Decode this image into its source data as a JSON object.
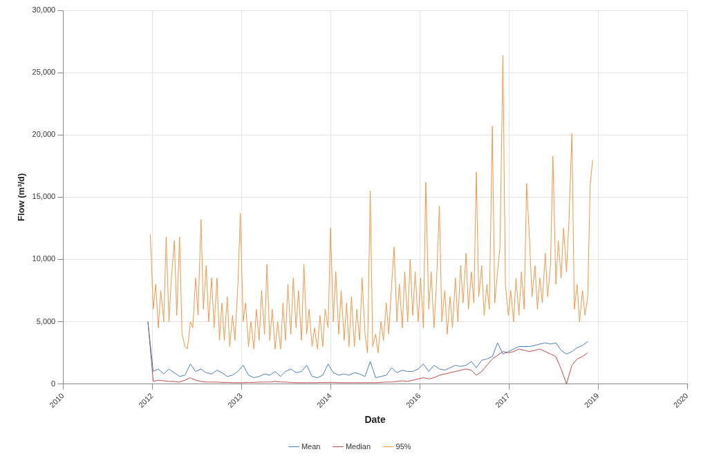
{
  "chart_data": {
    "type": "line",
    "xlabel": "Date",
    "ylabel": "Flow (m³/d)",
    "grid": true,
    "legend": "bottom",
    "xlim": [
      "2010-09-01",
      "2020-06-24"
    ],
    "xticks": [
      {
        "value": "2010-09-01",
        "label": "2010"
      },
      {
        "value": "2012-01-26",
        "label": "2012"
      },
      {
        "value": "2013-06-21",
        "label": "2013"
      },
      {
        "value": "2014-11-15",
        "label": "2014"
      },
      {
        "value": "2016-04-10",
        "label": "2016"
      },
      {
        "value": "2017-09-04",
        "label": "2017"
      },
      {
        "value": "2019-01-29",
        "label": "2019"
      },
      {
        "value": "2020-06-24",
        "label": "2020"
      }
    ],
    "ylim": [
      0,
      30000
    ],
    "yticks": [
      {
        "value": 0,
        "label": "0"
      },
      {
        "value": 5000,
        "label": "5,000"
      },
      {
        "value": 10000,
        "label": "10,000"
      },
      {
        "value": 15000,
        "label": "15,000"
      },
      {
        "value": 20000,
        "label": "20,000"
      },
      {
        "value": 25000,
        "label": "25,000"
      },
      {
        "value": 30000,
        "label": "30,000"
      }
    ],
    "series": [
      {
        "name": "Mean",
        "color": "#4a7ebb",
        "x": [
          "2012-01",
          "2012-02",
          "2012-03",
          "2012-04",
          "2012-05",
          "2012-06",
          "2012-07",
          "2012-08",
          "2012-09",
          "2012-10",
          "2012-11",
          "2012-12",
          "2013-01",
          "2013-02",
          "2013-03",
          "2013-04",
          "2013-05",
          "2013-06",
          "2013-07",
          "2013-08",
          "2013-09",
          "2013-10",
          "2013-11",
          "2013-12",
          "2014-01",
          "2014-02",
          "2014-03",
          "2014-04",
          "2014-05",
          "2014-06",
          "2014-07",
          "2014-08",
          "2014-09",
          "2014-10",
          "2014-11",
          "2014-12",
          "2015-01",
          "2015-02",
          "2015-03",
          "2015-04",
          "2015-05",
          "2015-06",
          "2015-07",
          "2015-08",
          "2015-09",
          "2015-10",
          "2015-11",
          "2015-12",
          "2016-01",
          "2016-02",
          "2016-03",
          "2016-04",
          "2016-05",
          "2016-06",
          "2016-07",
          "2016-08",
          "2016-09",
          "2016-10",
          "2016-11",
          "2016-12",
          "2017-01",
          "2017-02",
          "2017-03",
          "2017-04",
          "2017-05",
          "2017-06",
          "2017-07",
          "2017-08",
          "2017-09",
          "2017-10",
          "2017-11",
          "2017-12",
          "2018-01",
          "2018-02",
          "2018-03",
          "2018-04",
          "2018-05",
          "2018-06",
          "2018-07",
          "2018-08",
          "2018-09",
          "2018-10",
          "2018-11",
          "2018-12"
        ],
        "values": [
          5000,
          1000,
          1200,
          800,
          1200,
          900,
          600,
          700,
          1600,
          1000,
          1200,
          900,
          800,
          1100,
          900,
          600,
          700,
          1000,
          1500,
          700,
          500,
          600,
          800,
          700,
          1000,
          600,
          1000,
          1200,
          900,
          1000,
          1500,
          600,
          500,
          700,
          1600,
          900,
          700,
          800,
          700,
          900,
          800,
          600,
          1800,
          500,
          600,
          700,
          1300,
          900,
          1100,
          1000,
          1000,
          1200,
          1600,
          1000,
          1500,
          1200,
          1100,
          1300,
          1500,
          1400,
          1500,
          1800,
          1300,
          1900,
          2000,
          2200,
          3300,
          2400,
          2600,
          2800,
          3000,
          3000,
          3000,
          3100,
          3200,
          3300,
          3200,
          3300,
          2700,
          2400,
          2600,
          2900,
          3100,
          3400
        ]
      },
      {
        "name": "Median",
        "color": "#be4b48",
        "x": [
          "2012-01",
          "2012-02",
          "2012-03",
          "2012-04",
          "2012-05",
          "2012-06",
          "2012-07",
          "2012-08",
          "2012-09",
          "2012-10",
          "2012-11",
          "2012-12",
          "2013-01",
          "2013-02",
          "2013-03",
          "2013-04",
          "2013-05",
          "2013-06",
          "2013-07",
          "2013-08",
          "2013-09",
          "2013-10",
          "2013-11",
          "2013-12",
          "2014-01",
          "2014-02",
          "2014-03",
          "2014-04",
          "2014-05",
          "2014-06",
          "2014-07",
          "2014-08",
          "2014-09",
          "2014-10",
          "2014-11",
          "2014-12",
          "2015-01",
          "2015-02",
          "2015-03",
          "2015-04",
          "2015-05",
          "2015-06",
          "2015-07",
          "2015-08",
          "2015-09",
          "2015-10",
          "2015-11",
          "2015-12",
          "2016-01",
          "2016-02",
          "2016-03",
          "2016-04",
          "2016-05",
          "2016-06",
          "2016-07",
          "2016-08",
          "2016-09",
          "2016-10",
          "2016-11",
          "2016-12",
          "2017-01",
          "2017-02",
          "2017-03",
          "2017-04",
          "2017-05",
          "2017-06",
          "2017-07",
          "2017-08",
          "2017-09",
          "2017-10",
          "2017-11",
          "2017-12",
          "2018-01",
          "2018-02",
          "2018-03",
          "2018-04",
          "2018-05",
          "2018-06",
          "2018-07",
          "2018-08",
          "2018-09",
          "2018-10",
          "2018-11",
          "2018-12"
        ],
        "values": [
          5000,
          200,
          300,
          250,
          200,
          200,
          150,
          300,
          500,
          300,
          200,
          150,
          150,
          150,
          120,
          120,
          100,
          100,
          100,
          120,
          120,
          150,
          150,
          150,
          200,
          150,
          150,
          120,
          100,
          100,
          100,
          100,
          100,
          120,
          120,
          120,
          100,
          100,
          100,
          100,
          100,
          100,
          100,
          100,
          120,
          150,
          150,
          200,
          250,
          200,
          300,
          400,
          500,
          400,
          500,
          700,
          800,
          900,
          1000,
          1100,
          1200,
          1100,
          700,
          1000,
          1500,
          2000,
          2300,
          2600,
          2500,
          2600,
          2800,
          2700,
          2600,
          2700,
          2800,
          2600,
          2400,
          2200,
          1200,
          0,
          1500,
          2000,
          2200,
          2500
        ]
      },
      {
        "name": "95%",
        "color": "#f79646",
        "x": [
          "2012-01-15",
          "2012-02-01",
          "2012-02-15",
          "2012-03-01",
          "2012-03-15",
          "2012-04-01",
          "2012-04-15",
          "2012-05-01",
          "2012-05-15",
          "2012-06-01",
          "2012-06-15",
          "2012-07-01",
          "2012-07-15",
          "2012-08-01",
          "2012-08-15",
          "2012-09-01",
          "2012-09-15",
          "2012-10-01",
          "2012-10-15",
          "2012-11-01",
          "2012-11-15",
          "2012-12-01",
          "2012-12-15",
          "2013-01-01",
          "2013-01-15",
          "2013-02-01",
          "2013-02-15",
          "2013-03-01",
          "2013-03-15",
          "2013-04-01",
          "2013-04-15",
          "2013-05-01",
          "2013-05-15",
          "2013-06-01",
          "2013-06-15",
          "2013-07-01",
          "2013-07-15",
          "2013-08-01",
          "2013-08-15",
          "2013-09-01",
          "2013-09-15",
          "2013-10-01",
          "2013-10-15",
          "2013-11-01",
          "2013-11-15",
          "2013-12-01",
          "2013-12-15",
          "2014-01-01",
          "2014-01-15",
          "2014-02-01",
          "2014-02-15",
          "2014-03-01",
          "2014-03-15",
          "2014-04-01",
          "2014-04-15",
          "2014-05-01",
          "2014-05-15",
          "2014-06-01",
          "2014-06-15",
          "2014-07-01",
          "2014-07-15",
          "2014-08-01",
          "2014-08-15",
          "2014-09-01",
          "2014-09-15",
          "2014-10-01",
          "2014-10-15",
          "2014-11-01",
          "2014-11-15",
          "2014-12-01",
          "2014-12-15",
          "2015-01-01",
          "2015-01-15",
          "2015-02-01",
          "2015-02-15",
          "2015-03-01",
          "2015-03-15",
          "2015-04-01",
          "2015-04-15",
          "2015-05-01",
          "2015-05-15",
          "2015-06-01",
          "2015-06-15",
          "2015-07-01",
          "2015-07-15",
          "2015-08-01",
          "2015-08-15",
          "2015-09-01",
          "2015-09-15",
          "2015-10-01",
          "2015-10-15",
          "2015-11-01",
          "2015-11-15",
          "2015-12-01",
          "2015-12-15",
          "2016-01-01",
          "2016-01-15",
          "2016-02-01",
          "2016-02-15",
          "2016-03-01",
          "2016-03-15",
          "2016-04-01",
          "2016-04-15",
          "2016-05-01",
          "2016-05-15",
          "2016-06-01",
          "2016-06-15",
          "2016-07-01",
          "2016-07-15",
          "2016-08-01",
          "2016-08-15",
          "2016-09-01",
          "2016-09-15",
          "2016-10-01",
          "2016-10-15",
          "2016-11-01",
          "2016-11-15",
          "2016-12-01",
          "2016-12-15",
          "2017-01-01",
          "2017-01-15",
          "2017-02-01",
          "2017-02-15",
          "2017-03-01",
          "2017-03-15",
          "2017-04-01",
          "2017-04-15",
          "2017-05-01",
          "2017-05-15",
          "2017-06-01",
          "2017-06-15",
          "2017-07-01",
          "2017-07-15",
          "2017-08-01",
          "2017-08-15",
          "2017-09-01",
          "2017-09-15",
          "2017-10-01",
          "2017-10-15",
          "2017-11-01",
          "2017-11-15",
          "2017-12-01",
          "2017-12-15",
          "2018-01-01",
          "2018-01-15",
          "2018-02-01",
          "2018-02-15",
          "2018-03-01",
          "2018-03-15",
          "2018-04-01",
          "2018-04-15",
          "2018-05-01",
          "2018-05-15",
          "2018-06-01",
          "2018-06-15",
          "2018-07-01",
          "2018-07-15",
          "2018-08-01",
          "2018-08-15",
          "2018-09-01",
          "2018-09-15",
          "2018-10-01",
          "2018-10-15",
          "2018-11-01",
          "2018-11-15",
          "2018-12-01",
          "2018-12-15",
          "2018-12-29"
        ],
        "values": [
          12000,
          6000,
          8000,
          4500,
          7500,
          5000,
          11800,
          5000,
          8500,
          11500,
          5500,
          11800,
          4000,
          3000,
          2800,
          5000,
          4500,
          8500,
          5500,
          13200,
          6000,
          9500,
          5000,
          8500,
          4500,
          8500,
          3500,
          6500,
          3500,
          7000,
          3000,
          5500,
          3500,
          8000,
          13700,
          5000,
          6500,
          3000,
          5000,
          2800,
          6000,
          3500,
          7500,
          4000,
          9600,
          3500,
          6000,
          2800,
          5000,
          2800,
          6500,
          3500,
          8000,
          4000,
          8500,
          4500,
          7500,
          3500,
          9600,
          4000,
          6000,
          3000,
          4500,
          2800,
          5500,
          3000,
          6000,
          4500,
          12500,
          5000,
          9000,
          4000,
          7500,
          3500,
          6500,
          3000,
          7000,
          3000,
          6000,
          3500,
          8500,
          4000,
          2500,
          15500,
          3000,
          4000,
          2500,
          5000,
          3500,
          6500,
          4000,
          8000,
          11000,
          5000,
          8000,
          4500,
          9000,
          5000,
          10000,
          5500,
          9000,
          5000,
          8500,
          4500,
          16200,
          6000,
          9000,
          4500,
          8000,
          14300,
          5000,
          7500,
          4000,
          7000,
          4500,
          8500,
          5000,
          9500,
          6500,
          10500,
          6000,
          9000,
          6500,
          17000,
          7000,
          9500,
          5500,
          8000,
          6000,
          20700,
          6500,
          9000,
          11000,
          26400,
          8000,
          5500,
          7500,
          5000,
          8500,
          5500,
          9000,
          6000,
          16100,
          11500,
          7000,
          9500,
          6000,
          8500,
          6500,
          10500,
          7000,
          9500,
          18300,
          8000,
          11500,
          8500,
          12500,
          9000,
          13100,
          20100,
          6000,
          8000,
          5000,
          7500,
          5500,
          7000,
          16000,
          18000
        ]
      }
    ]
  }
}
